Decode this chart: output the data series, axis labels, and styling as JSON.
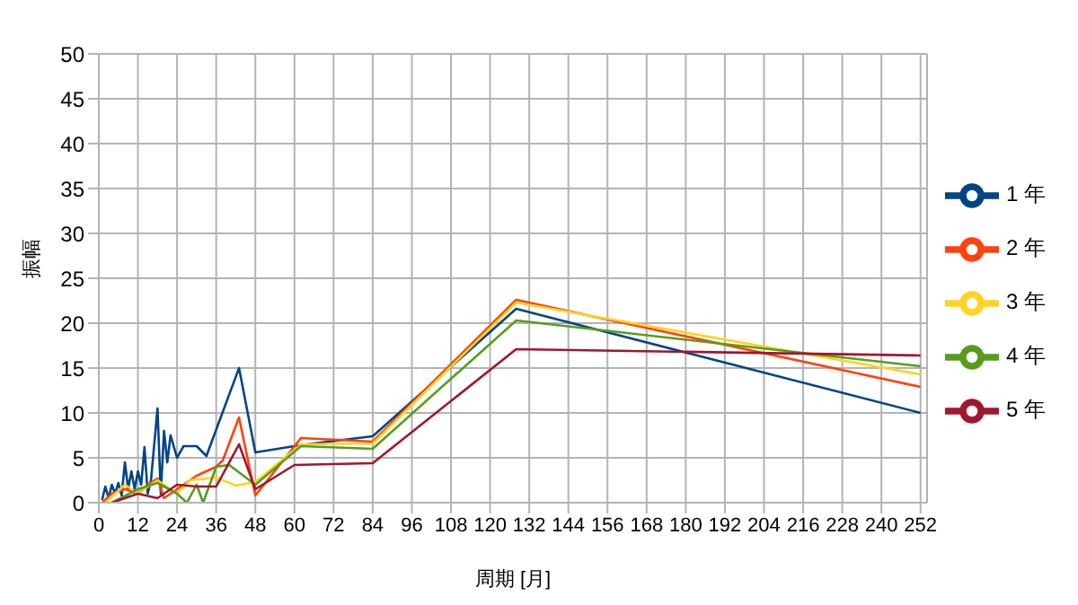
{
  "chart_data": {
    "type": "line",
    "xlabel": "周期 [月]",
    "ylabel": "振幅",
    "xlim": [
      0,
      254
    ],
    "xticks": [
      0,
      12,
      24,
      36,
      48,
      60,
      72,
      84,
      96,
      108,
      120,
      132,
      144,
      156,
      168,
      180,
      192,
      204,
      216,
      228,
      240,
      252
    ],
    "ylim": [
      0,
      50
    ],
    "yticks": [
      0,
      5,
      10,
      15,
      20,
      25,
      30,
      35,
      40,
      45,
      50
    ],
    "grid": true,
    "legend": "right",
    "marker": "none",
    "line_style": "solid",
    "series": [
      {
        "name": "1 年",
        "color": "#004586",
        "x": [
          1,
          2,
          3,
          4,
          5,
          6,
          7,
          8,
          9,
          10,
          11,
          12,
          13,
          14,
          15,
          16,
          18,
          19,
          20,
          21,
          22,
          24,
          26,
          30,
          33,
          43,
          48,
          60,
          66,
          84,
          128,
          252
        ],
        "values": [
          0.3,
          1.8,
          0.5,
          2,
          1,
          2.2,
          0.8,
          4.5,
          1.5,
          3.5,
          1.5,
          3.5,
          2,
          6.2,
          1,
          2.5,
          10.5,
          1,
          8,
          4.5,
          7.5,
          5,
          6.3,
          6.3,
          5.2,
          15,
          5.6,
          6.3,
          6.6,
          7.4,
          21.6,
          10
        ]
      },
      {
        "name": "2 年",
        "color": "#ff420e",
        "x": [
          1,
          4,
          8,
          12,
          15,
          18,
          20,
          24,
          30,
          36,
          38,
          43,
          48,
          62,
          84,
          128,
          252
        ],
        "values": [
          0,
          1,
          1.5,
          1,
          2,
          2.7,
          0.5,
          1.5,
          3,
          4,
          4.7,
          9.5,
          0.8,
          7.2,
          6.8,
          22.6,
          12.9
        ]
      },
      {
        "name": "3 年",
        "color": "#ffd320",
        "x": [
          2,
          8,
          12,
          18,
          24,
          28,
          36,
          42,
          48,
          62,
          84,
          128,
          252
        ],
        "values": [
          0,
          2,
          1,
          2.5,
          1,
          2.5,
          2.8,
          1.9,
          2.3,
          6.5,
          6.6,
          22.3,
          14.3
        ]
      },
      {
        "name": "4 年",
        "color": "#579d1c",
        "x": [
          4,
          12,
          18,
          24,
          27,
          30,
          32,
          36,
          40,
          48,
          62,
          84,
          128,
          252
        ],
        "values": [
          0,
          1.5,
          2.2,
          1,
          0,
          2,
          0,
          4,
          4.2,
          2,
          6.3,
          6,
          20.3,
          15.2
        ]
      },
      {
        "name": "5 年",
        "color": "#a0162f",
        "x": [
          4,
          12,
          18,
          24,
          30,
          36,
          43,
          48,
          60,
          84,
          128,
          252
        ],
        "values": [
          0,
          1,
          0.5,
          2,
          1.8,
          1.8,
          6.5,
          1.5,
          4.2,
          4.4,
          17.1,
          16.4
        ]
      }
    ]
  }
}
